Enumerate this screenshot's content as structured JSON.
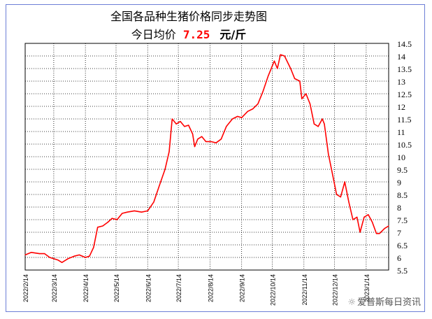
{
  "header": {
    "title": "全国各品种生猪价格同步走势图",
    "subtitle_prefix": "今日均价",
    "price": "7.25",
    "unit": "元/斤"
  },
  "watermark": "爱普斯每日资讯",
  "colors": {
    "line": "#ff0000",
    "grid": "#000000",
    "frame": "#6d7fd6"
  },
  "chart_data": {
    "type": "line",
    "title": "全国各品种生猪价格同步走势图",
    "xlabel": "",
    "ylabel": "",
    "ylim": [
      5.5,
      14.5
    ],
    "yticks": [
      "5.5",
      "6",
      "6.5",
      "7",
      "7.5",
      "8",
      "8.5",
      "9",
      "9.5",
      "10",
      "10.5",
      "11",
      "11.5",
      "12",
      "12.5",
      "13",
      "13.5",
      "14",
      "14.5"
    ],
    "xticks": [
      "2022/2/14",
      "2022/3/14",
      "2022/4/14",
      "2022/5/14",
      "2022/6/14",
      "2022/7/14",
      "2022/8/14",
      "2022/9/14",
      "2022/10/14",
      "2022/11/14",
      "2022/12/14",
      "2023/1/14"
    ],
    "grid": true,
    "series": [
      {
        "values": [
          [
            "2022-02-14",
            6.1
          ],
          [
            "2022-02-20",
            6.2
          ],
          [
            "2022-02-28",
            6.15
          ],
          [
            "2022-03-05",
            6.15
          ],
          [
            "2022-03-10",
            6.0
          ],
          [
            "2022-03-18",
            5.9
          ],
          [
            "2022-03-22",
            5.8
          ],
          [
            "2022-03-28",
            5.95
          ],
          [
            "2022-04-03",
            6.05
          ],
          [
            "2022-04-08",
            6.1
          ],
          [
            "2022-04-14",
            6.0
          ],
          [
            "2022-04-18",
            6.05
          ],
          [
            "2022-04-22",
            6.4
          ],
          [
            "2022-04-26",
            7.2
          ],
          [
            "2022-05-01",
            7.25
          ],
          [
            "2022-05-06",
            7.4
          ],
          [
            "2022-05-10",
            7.55
          ],
          [
            "2022-05-15",
            7.5
          ],
          [
            "2022-05-20",
            7.75
          ],
          [
            "2022-05-25",
            7.8
          ],
          [
            "2022-06-01",
            7.85
          ],
          [
            "2022-06-08",
            7.8
          ],
          [
            "2022-06-14",
            7.85
          ],
          [
            "2022-06-20",
            8.2
          ],
          [
            "2022-06-25",
            8.8
          ],
          [
            "2022-07-01",
            9.5
          ],
          [
            "2022-07-05",
            10.2
          ],
          [
            "2022-07-08",
            11.5
          ],
          [
            "2022-07-12",
            11.3
          ],
          [
            "2022-07-16",
            11.4
          ],
          [
            "2022-07-20",
            11.2
          ],
          [
            "2022-07-24",
            11.25
          ],
          [
            "2022-07-28",
            10.9
          ],
          [
            "2022-07-30",
            10.4
          ],
          [
            "2022-08-02",
            10.7
          ],
          [
            "2022-08-06",
            10.8
          ],
          [
            "2022-08-10",
            10.6
          ],
          [
            "2022-08-15",
            10.6
          ],
          [
            "2022-08-20",
            10.55
          ],
          [
            "2022-08-25",
            10.7
          ],
          [
            "2022-08-30",
            11.2
          ],
          [
            "2022-09-05",
            11.5
          ],
          [
            "2022-09-10",
            11.6
          ],
          [
            "2022-09-14",
            11.55
          ],
          [
            "2022-09-20",
            11.8
          ],
          [
            "2022-09-25",
            11.9
          ],
          [
            "2022-09-30",
            12.1
          ],
          [
            "2022-10-05",
            12.6
          ],
          [
            "2022-10-10",
            13.2
          ],
          [
            "2022-10-16",
            13.8
          ],
          [
            "2022-10-19",
            13.5
          ],
          [
            "2022-10-22",
            14.05
          ],
          [
            "2022-10-26",
            14.0
          ],
          [
            "2022-11-01",
            13.5
          ],
          [
            "2022-11-05",
            13.1
          ],
          [
            "2022-11-10",
            13.0
          ],
          [
            "2022-11-12",
            12.3
          ],
          [
            "2022-11-16",
            12.5
          ],
          [
            "2022-11-20",
            12.1
          ],
          [
            "2022-11-24",
            11.3
          ],
          [
            "2022-11-28",
            11.2
          ],
          [
            "2022-12-02",
            11.5
          ],
          [
            "2022-12-04",
            11.3
          ],
          [
            "2022-12-08",
            10.1
          ],
          [
            "2022-12-12",
            9.3
          ],
          [
            "2022-12-16",
            8.5
          ],
          [
            "2022-12-20",
            8.4
          ],
          [
            "2022-12-24",
            9.0
          ],
          [
            "2022-12-28",
            8.2
          ],
          [
            "2023-01-01",
            7.5
          ],
          [
            "2023-01-05",
            7.6
          ],
          [
            "2023-01-08",
            7.0
          ],
          [
            "2023-01-12",
            7.6
          ],
          [
            "2023-01-16",
            7.7
          ],
          [
            "2023-01-20",
            7.4
          ],
          [
            "2023-01-24",
            6.95
          ],
          [
            "2023-01-27",
            6.95
          ],
          [
            "2023-02-01",
            7.15
          ],
          [
            "2023-02-05",
            7.25
          ]
        ]
      }
    ]
  }
}
